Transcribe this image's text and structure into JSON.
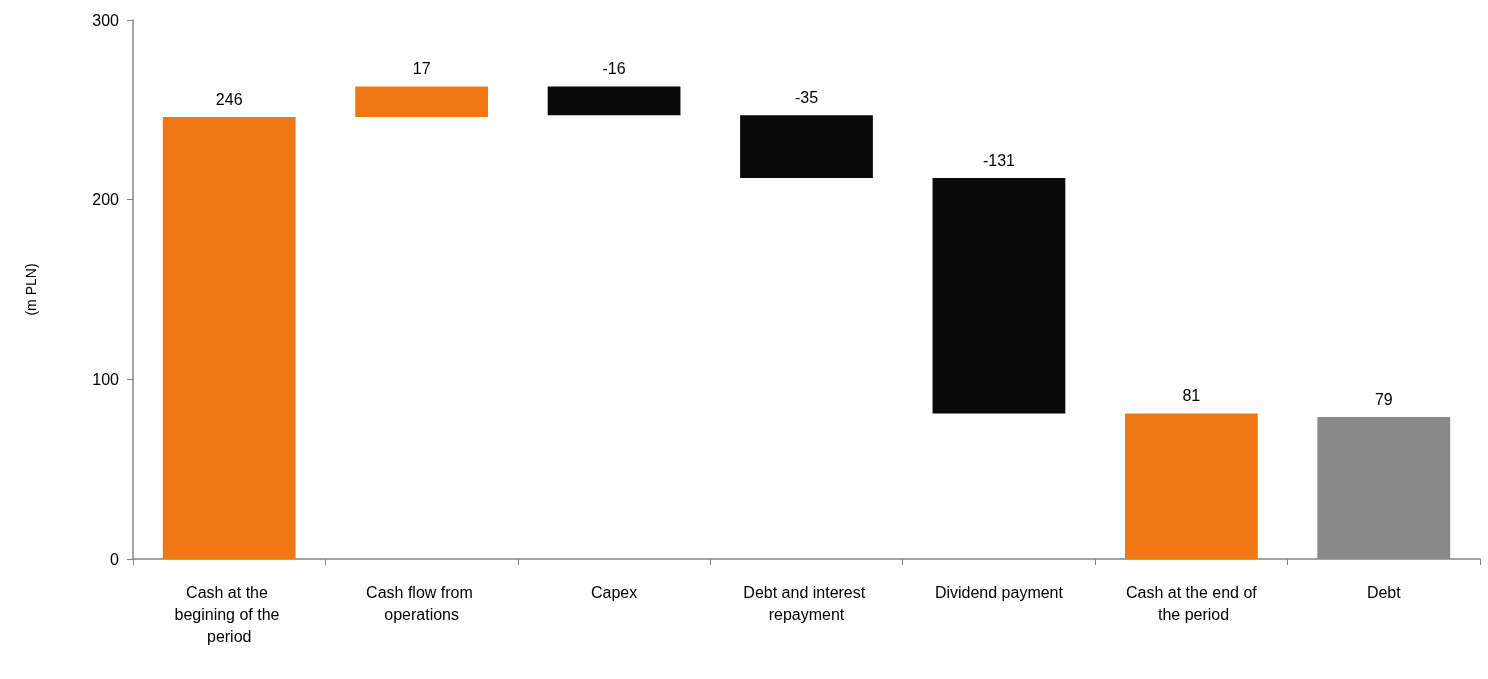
{
  "chart_data": {
    "type": "bar",
    "ylabel": "(m PLN)",
    "categories": [
      "Cash at the begining of the period",
      "Cash flow from operations",
      "Capex",
      "Debt and interest repayment",
      "Dividend payment",
      "Cash at the end of the period",
      "Debt"
    ],
    "values": [
      246,
      17,
      -16,
      -35,
      -131,
      81,
      79
    ],
    "base": [
      0,
      246,
      263,
      247,
      212,
      0,
      0
    ],
    "colors": [
      "#f07814",
      "#f07814",
      "#0a0a0a",
      "#0a0a0a",
      "#0a0a0a",
      "#f07814",
      "#898989"
    ],
    "ylim": [
      0,
      300
    ],
    "yticks": [
      0,
      100,
      200,
      300
    ],
    "grid": false,
    "data_labels": true
  }
}
